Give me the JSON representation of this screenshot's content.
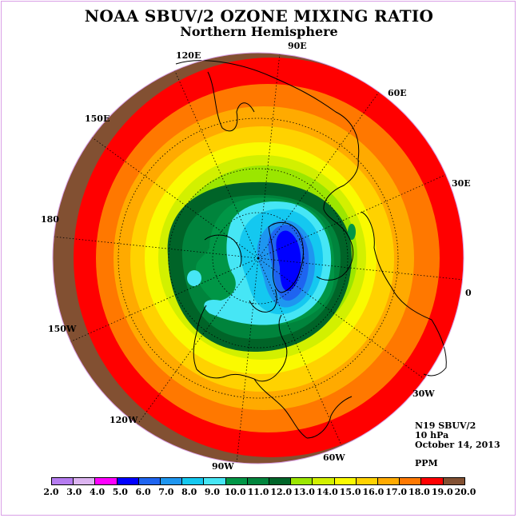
{
  "title": "NOAA SBUV/2 OZONE MIXING RATIO",
  "subtitle": "Northern Hemisphere",
  "longitude_labels": [
    "90E",
    "60E",
    "30E",
    "0",
    "30W",
    "60W",
    "90W",
    "120W",
    "150W",
    "180",
    "150E",
    "120E"
  ],
  "info": {
    "instrument": "N19 SBUV/2",
    "level": "10 hPa",
    "date": "October 14, 2013",
    "units": "PPM"
  },
  "colorbar": {
    "ticks": [
      "2.0",
      "3.0",
      "4.0",
      "5.0",
      "6.0",
      "7.0",
      "8.0",
      "9.0",
      "10.0",
      "11.0",
      "12.0",
      "13.0",
      "14.0",
      "15.0",
      "16.0",
      "17.0",
      "18.0",
      "19.0",
      "20.0"
    ],
    "colors": [
      "#b57cf0",
      "#dcb4f0",
      "#ff00ff",
      "#0000ff",
      "#1e64f0",
      "#1e96f0",
      "#14c8f0",
      "#46e6f5",
      "#009646",
      "#00843c",
      "#006428",
      "#9be600",
      "#d2f000",
      "#fafa00",
      "#ffd200",
      "#ffaa00",
      "#ff7800",
      "#ff0000",
      "#825032"
    ]
  },
  "map_style": {
    "projection": "north polar stereographic",
    "center_color": "#0000ff",
    "outer_color": "#825032",
    "coastline_color": "#000000",
    "grid": "dotted"
  }
}
